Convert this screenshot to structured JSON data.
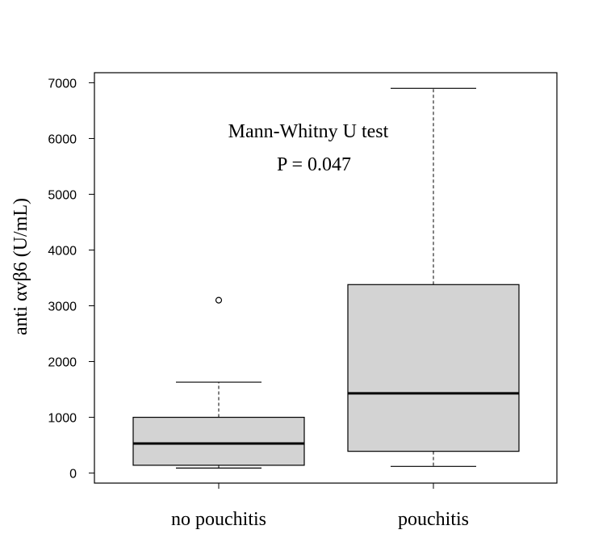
{
  "chart_data": {
    "type": "boxplot",
    "title": "",
    "xlabel": "",
    "ylabel": "anti αvβ6 (U/mL)",
    "ylim": [
      -180,
      7180
    ],
    "yticks": [
      0,
      1000,
      2000,
      3000,
      4000,
      5000,
      6000,
      7000
    ],
    "ytick_labels": [
      "0",
      "1000",
      "2000",
      "3000",
      "4000",
      "5000",
      "6000",
      "7000"
    ],
    "grid": false,
    "categories": [
      "no pouchitis",
      "pouchitis"
    ],
    "boxes": [
      {
        "category": "no pouchitis",
        "whisker_low": 90,
        "q1": 140,
        "median": 530,
        "q3": 1000,
        "whisker_high": 1630,
        "outliers": [
          3100
        ]
      },
      {
        "category": "pouchitis",
        "whisker_low": 120,
        "q1": 390,
        "median": 1430,
        "q3": 3380,
        "whisker_high": 6900,
        "outliers": []
      }
    ],
    "annotations": [
      "Mann-Whitny U test",
      "P = 0.047"
    ],
    "colors": {
      "box_fill": "#d3d3d3",
      "line": "#000000"
    }
  }
}
